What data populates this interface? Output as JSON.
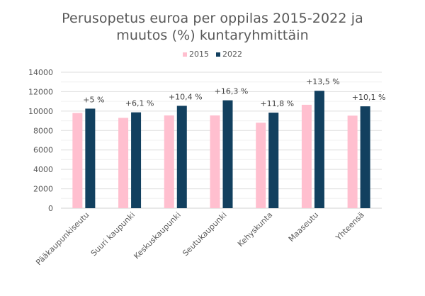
{
  "chart_data": {
    "type": "bar",
    "title": "Perusopetus euroa per oppilas 2015-2022 ja muutos (%) kuntaryhmittäin",
    "title_lines": [
      "Perusopetus euroa per oppilas 2015-2022 ja",
      "muutos (%) kuntaryhmittäin"
    ],
    "xlabel": "",
    "ylabel": "",
    "ylim": [
      0,
      14000
    ],
    "yticks": [
      0,
      2000,
      4000,
      6000,
      8000,
      10000,
      12000,
      14000
    ],
    "ytick_labels": [
      "0",
      "2000",
      "4000",
      "6000",
      "8000",
      "10000",
      "12000",
      "14000"
    ],
    "grid": true,
    "legend_position": "top",
    "categories": [
      "Pääkaupunkiseutu",
      "Suuri kaupunki",
      "Keskuskaupunki",
      "Seutukaupunki",
      "Kehyskunta",
      "Maaseutu",
      "Yhteensä"
    ],
    "series": [
      {
        "name": "2015",
        "color": "#FFBFCF",
        "values": [
          9800,
          9300,
          9550,
          9550,
          8800,
          10650,
          9530
        ]
      },
      {
        "name": "2022",
        "color": "#12405F",
        "values": [
          10250,
          9870,
          10540,
          11110,
          9840,
          12090,
          10490
        ]
      }
    ],
    "annotations": [
      "+5 %",
      "+6,1 %",
      "+10,4 %",
      "+16,3 %",
      "+11,8 %",
      "+13,5 %",
      "+10,1 %"
    ]
  }
}
